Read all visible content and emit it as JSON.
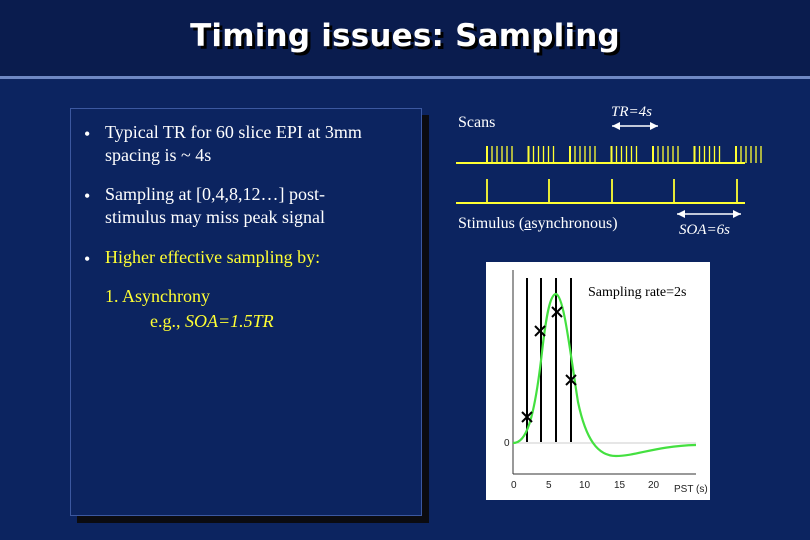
{
  "title": "Timing issues: Sampling",
  "bullets": [
    {
      "line1": "Typical TR for 60 slice EPI at 3mm",
      "line2": "spacing is ~ 4s"
    },
    {
      "line1": "Sampling at [0,4,8,12…] post-",
      "line2": "stimulus may miss peak signal"
    },
    {
      "line1": "Higher effective sampling by:"
    }
  ],
  "sub": {
    "line1": "1. Asynchrony",
    "line2_prefix": "e.g., ",
    "line2_em": "SOA=1.5TR"
  },
  "timing": {
    "scans_label": "Scans",
    "tr_label": "TR=4s",
    "stimulus_prefix": "Stimulus (",
    "stimulus_underlined": "a",
    "stimulus_suffix": "synchronous)",
    "soa_label": "SOA=6s"
  },
  "plot": {
    "sampling_rate_label": "Sampling rate=2s",
    "x_ticks": [
      "0",
      "5",
      "10",
      "15",
      "20"
    ],
    "x_label": "PST (s)",
    "y_tick": "0"
  },
  "colors": {
    "background": "#0c2460",
    "accent_yellow": "#ffff33",
    "curve_green": "#44e040"
  }
}
